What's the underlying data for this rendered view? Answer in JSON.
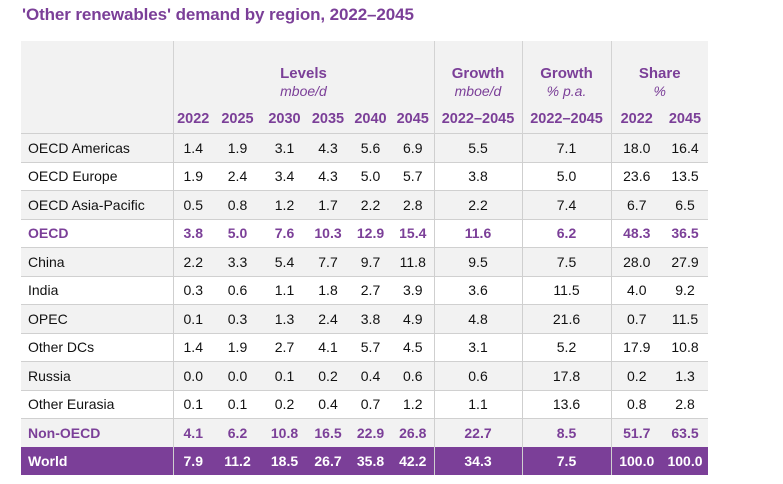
{
  "title": "'Other renewables' demand by region, 2022–2045",
  "headers": {
    "levels": "Levels",
    "levels_unit": "mboe/d",
    "growth_abs": "Growth",
    "growth_abs_unit": "mboe/d",
    "growth_pct": "Growth",
    "growth_pct_unit": "% p.a.",
    "share": "Share",
    "share_unit": "%",
    "years": [
      "2022",
      "2025",
      "2030",
      "2035",
      "2040",
      "2045"
    ],
    "growth_abs_period": "2022–2045",
    "growth_pct_period": "2022–2045",
    "share_years": [
      "2022",
      "2045"
    ]
  },
  "rows": [
    {
      "region": "OECD Americas",
      "levels": [
        "1.4",
        "1.9",
        "3.1",
        "4.3",
        "5.6",
        "6.9"
      ],
      "growth": "5.5",
      "growth_pa": "7.1",
      "share": [
        "18.0",
        "16.4"
      ]
    },
    {
      "region": "OECD Europe",
      "levels": [
        "1.9",
        "2.4",
        "3.4",
        "4.3",
        "5.0",
        "5.7"
      ],
      "growth": "3.8",
      "growth_pa": "5.0",
      "share": [
        "23.6",
        "13.5"
      ]
    },
    {
      "region": "OECD Asia-Pacific",
      "levels": [
        "0.5",
        "0.8",
        "1.2",
        "1.7",
        "2.2",
        "2.8"
      ],
      "growth": "2.2",
      "growth_pa": "7.4",
      "share": [
        "6.7",
        "6.5"
      ]
    },
    {
      "region": "OECD",
      "levels": [
        "3.8",
        "5.0",
        "7.6",
        "10.3",
        "12.9",
        "15.4"
      ],
      "growth": "11.6",
      "growth_pa": "6.2",
      "share": [
        "48.3",
        "36.5"
      ]
    },
    {
      "region": "China",
      "levels": [
        "2.2",
        "3.3",
        "5.4",
        "7.7",
        "9.7",
        "11.8"
      ],
      "growth": "9.5",
      "growth_pa": "7.5",
      "share": [
        "28.0",
        "27.9"
      ]
    },
    {
      "region": "India",
      "levels": [
        "0.3",
        "0.6",
        "1.1",
        "1.8",
        "2.7",
        "3.9"
      ],
      "growth": "3.6",
      "growth_pa": "11.5",
      "share": [
        "4.0",
        "9.2"
      ]
    },
    {
      "region": "OPEC",
      "levels": [
        "0.1",
        "0.3",
        "1.3",
        "2.4",
        "3.8",
        "4.9"
      ],
      "growth": "4.8",
      "growth_pa": "21.6",
      "share": [
        "0.7",
        "11.5"
      ]
    },
    {
      "region": "Other DCs",
      "levels": [
        "1.4",
        "1.9",
        "2.7",
        "4.1",
        "5.7",
        "4.5"
      ],
      "growth": "3.1",
      "growth_pa": "5.2",
      "share": [
        "17.9",
        "10.8"
      ]
    },
    {
      "region": "Russia",
      "levels": [
        "0.0",
        "0.0",
        "0.1",
        "0.2",
        "0.4",
        "0.6"
      ],
      "growth": "0.6",
      "growth_pa": "17.8",
      "share": [
        "0.2",
        "1.3"
      ]
    },
    {
      "region": "Other Eurasia",
      "levels": [
        "0.1",
        "0.1",
        "0.2",
        "0.4",
        "0.7",
        "1.2"
      ],
      "growth": "1.1",
      "growth_pa": "13.6",
      "share": [
        "0.8",
        "2.8"
      ]
    },
    {
      "region": "Non-OECD",
      "levels": [
        "4.1",
        "6.2",
        "10.8",
        "16.5",
        "22.9",
        "26.8"
      ],
      "growth": "22.7",
      "growth_pa": "8.5",
      "share": [
        "51.7",
        "63.5"
      ]
    },
    {
      "region": "World",
      "levels": [
        "7.9",
        "11.2",
        "18.5",
        "26.7",
        "35.8",
        "42.2"
      ],
      "growth": "34.3",
      "growth_pa": "7.5",
      "share": [
        "100.0",
        "100.0"
      ]
    }
  ],
  "colors": {
    "accent": "#7b3f98",
    "band": "#f2f2f2",
    "text": "#111111"
  }
}
